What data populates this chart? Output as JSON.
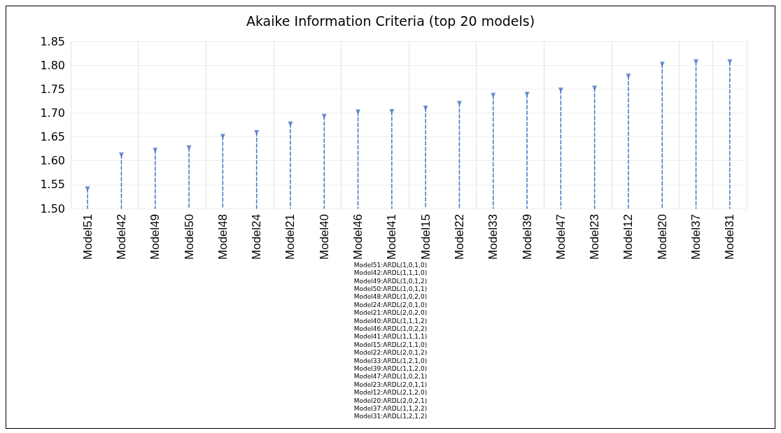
{
  "chart_data": {
    "type": "lollipop",
    "title": "Akaike Information Criteria (top 20 models)",
    "categories": [
      "Model51",
      "Model42",
      "Model49",
      "Model50",
      "Model48",
      "Model24",
      "Model21",
      "Model40",
      "Model46",
      "Model41",
      "Model15",
      "Model22",
      "Model33",
      "Model39",
      "Model47",
      "Model23",
      "Model12",
      "Model20",
      "Model37",
      "Model31"
    ],
    "values": [
      1.541,
      1.612,
      1.622,
      1.627,
      1.651,
      1.659,
      1.677,
      1.693,
      1.702,
      1.703,
      1.71,
      1.72,
      1.737,
      1.739,
      1.748,
      1.752,
      1.777,
      1.802,
      1.807,
      1.807
    ],
    "color": "#4472c4",
    "marker": "triangle",
    "line_style": "dashed",
    "grid": true,
    "ylim": [
      1.5,
      1.85
    ],
    "yticks": [
      {
        "value": 1.5,
        "label": "1.50"
      },
      {
        "value": 1.55,
        "label": "1.55"
      },
      {
        "value": 1.6,
        "label": "1.60"
      },
      {
        "value": 1.65,
        "label": "1.65"
      },
      {
        "value": 1.7,
        "label": "1.70"
      },
      {
        "value": 1.75,
        "label": "1.75"
      },
      {
        "value": 1.8,
        "label": "1.80"
      },
      {
        "value": 1.85,
        "label": "1.85"
      }
    ],
    "annotations": [
      "Model51:ARDL(1,0,1,0)",
      "Model42:ARDL(1,1,1,0)",
      "Model49:ARDL(1,0,1,2)",
      "Model50:ARDL(1,0,1,1)",
      "Model48:ARDL(1,0,2,0)",
      "Model24:ARDL(2,0,1,0)",
      "Model21:ARDL(2,0,2,0)",
      "Model40:ARDL(1,1,1,2)",
      "Model46:ARDL(1,0,2,2)",
      "Model41:ARDL(1,1,1,1)",
      "Model15:ARDL(2,1,1,0)",
      "Model22:ARDL(2,0,1,2)",
      "Model33:ARDL(1,2,1,0)",
      "Model39:ARDL(1,1,2,0)",
      "Model47:ARDL(1,0,2,1)",
      "Model23:ARDL(2,0,1,1)",
      "Model12:ARDL(2,1,2,0)",
      "Model20:ARDL(2,0,2,1)",
      "Model37:ARDL(1,1,2,2)",
      "Model31:ARDL(1,2,1,2)"
    ]
  }
}
